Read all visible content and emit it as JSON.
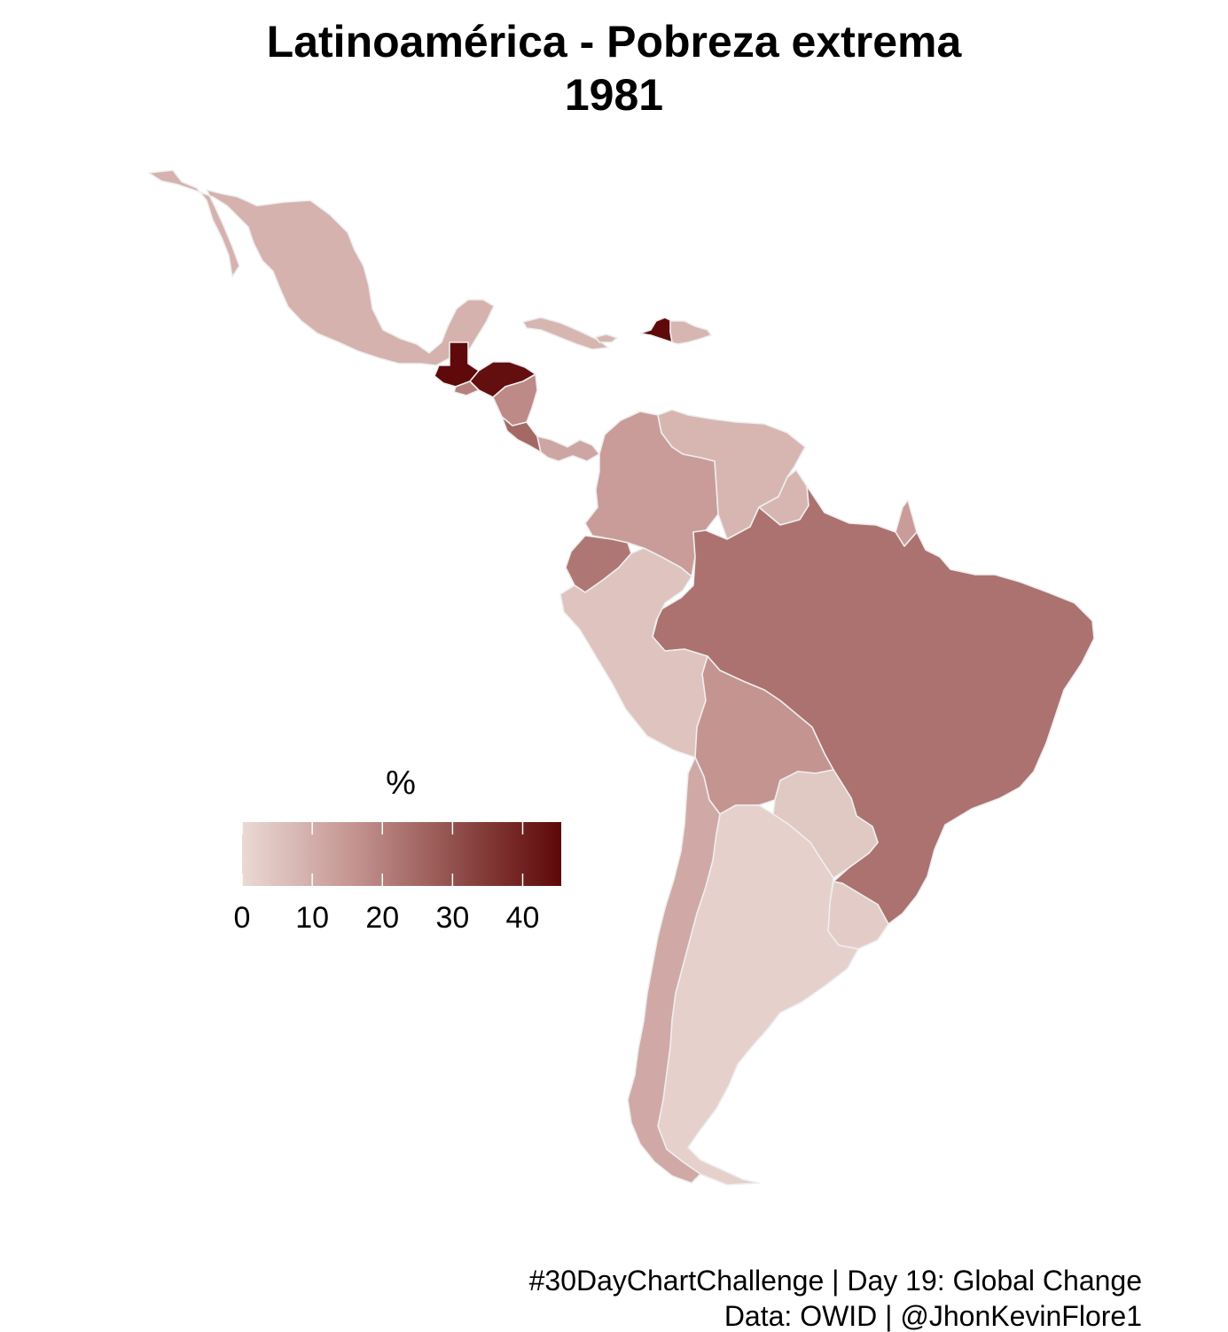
{
  "title_line1": "Latinoamérica - Pobreza extrema",
  "title_line2": "1981",
  "legend": {
    "title": "%",
    "ticks": [
      "0",
      "10",
      "20",
      "30",
      "40"
    ],
    "tick_values": [
      0,
      10,
      20,
      30,
      40
    ],
    "range": [
      0,
      45.5
    ],
    "color_low": "#ead9d4",
    "color_high": "#5e0708"
  },
  "caption_line1": "#30DayChartChallenge | Day 19: Global Change",
  "caption_line2": "Data: OWID |  @JhonKevinFlore1",
  "border_color": "#eeeeee",
  "countries": [
    {
      "id": "mexico",
      "value": 9
    },
    {
      "id": "cuba",
      "value": 8
    },
    {
      "id": "haiti",
      "value": 45
    },
    {
      "id": "dominican-republic",
      "value": 8
    },
    {
      "id": "jamaica",
      "value": 8
    },
    {
      "id": "guatemala",
      "value": 45
    },
    {
      "id": "honduras",
      "value": 44
    },
    {
      "id": "el-salvador",
      "value": 20
    },
    {
      "id": "nicaragua",
      "value": 18
    },
    {
      "id": "costa-rica",
      "value": 25
    },
    {
      "id": "panama",
      "value": 12
    },
    {
      "id": "colombia",
      "value": 14
    },
    {
      "id": "venezuela",
      "value": 8
    },
    {
      "id": "guyana",
      "value": 8
    },
    {
      "id": "suriname",
      "value": 14
    },
    {
      "id": "ecuador",
      "value": 22
    },
    {
      "id": "peru",
      "value": 5
    },
    {
      "id": "brazil",
      "value": 23
    },
    {
      "id": "bolivia",
      "value": 16
    },
    {
      "id": "paraguay",
      "value": 4
    },
    {
      "id": "chile",
      "value": 11
    },
    {
      "id": "argentina",
      "value": 2
    },
    {
      "id": "uruguay",
      "value": 3
    }
  ]
}
